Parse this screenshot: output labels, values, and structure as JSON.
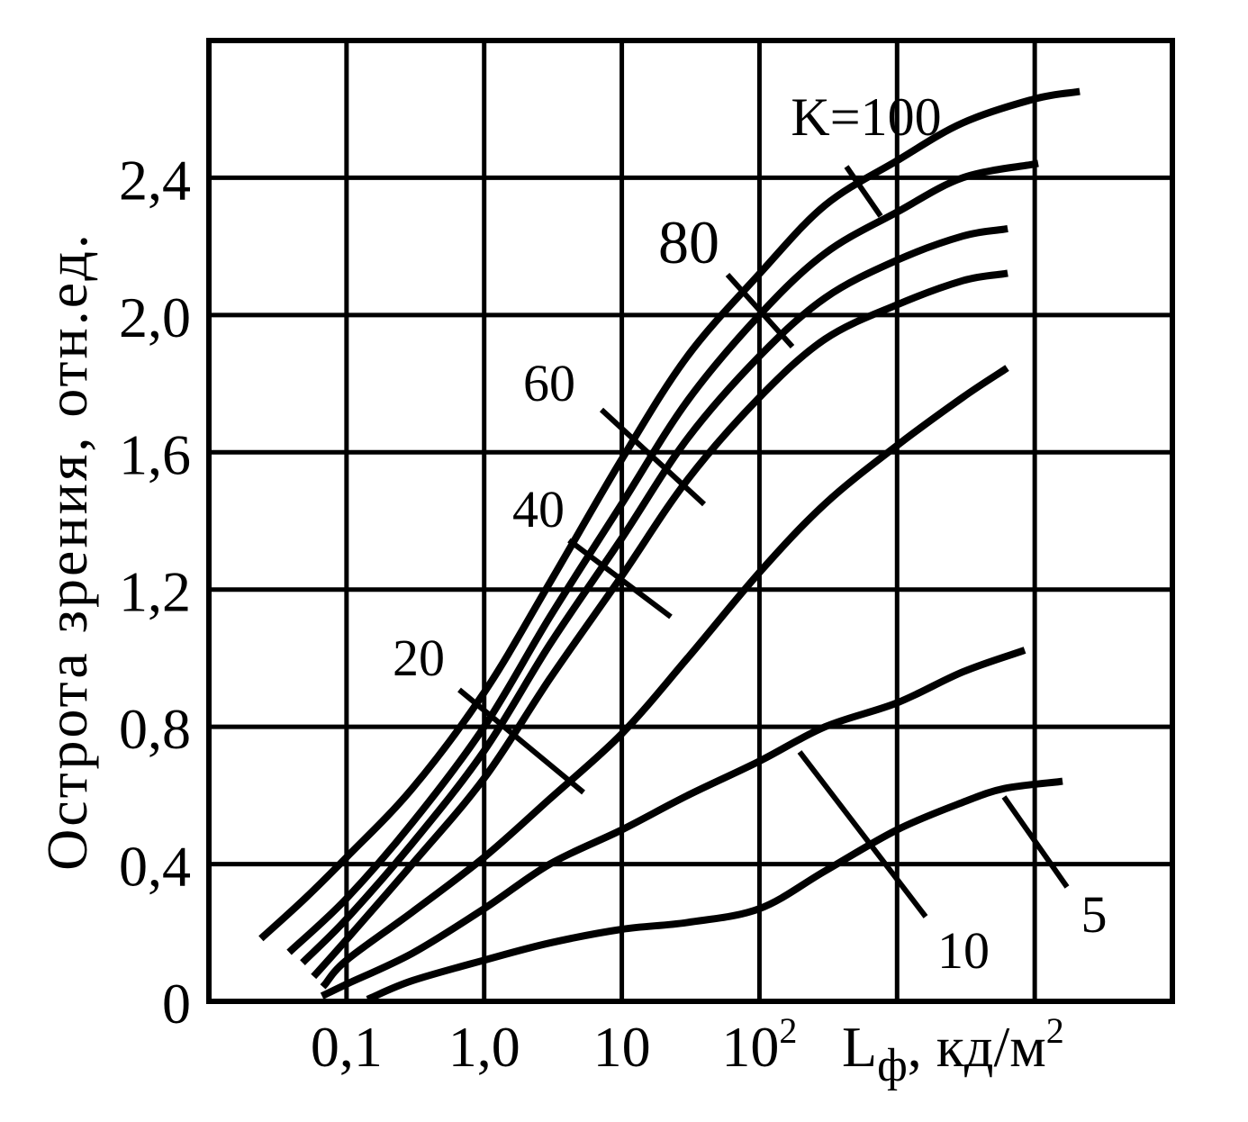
{
  "chart_data": {
    "type": "line",
    "ylabel": "Острота зрения, отн.ед.",
    "xlabel": {
      "main": "L",
      "sub": "ф",
      "rest": ", кд/м",
      "sup": "2"
    },
    "x_scale": "log",
    "xlim": [
      0.01,
      100000
    ],
    "ylim": [
      0,
      2.8
    ],
    "grid": true,
    "x_ticks": [
      {
        "value": 0.1,
        "label": "0,1",
        "sup": ""
      },
      {
        "value": 1,
        "label": "1,0",
        "sup": ""
      },
      {
        "value": 10,
        "label": "10",
        "sup": ""
      },
      {
        "value": 100,
        "label": "10",
        "sup": "2"
      }
    ],
    "y_ticks": [
      {
        "value": 0,
        "label": "0"
      },
      {
        "value": 0.4,
        "label": "0,4"
      },
      {
        "value": 0.8,
        "label": "0,8"
      },
      {
        "value": 1.2,
        "label": "1,2"
      },
      {
        "value": 1.6,
        "label": "1,6"
      },
      {
        "value": 2.0,
        "label": "2,0"
      },
      {
        "value": 2.4,
        "label": "2,4"
      }
    ],
    "series": [
      {
        "name": "K=100",
        "points": [
          [
            0.025,
            0.19
          ],
          [
            0.05,
            0.3
          ],
          [
            0.1,
            0.42
          ],
          [
            0.3,
            0.62
          ],
          [
            1,
            0.9
          ],
          [
            3,
            1.22
          ],
          [
            10,
            1.58
          ],
          [
            30,
            1.88
          ],
          [
            100,
            2.12
          ],
          [
            300,
            2.32
          ],
          [
            1000,
            2.45
          ],
          [
            3000,
            2.56
          ],
          [
            10000,
            2.63
          ],
          [
            20000,
            2.65
          ]
        ]
      },
      {
        "name": "80",
        "points": [
          [
            0.04,
            0.15
          ],
          [
            0.1,
            0.3
          ],
          [
            0.3,
            0.52
          ],
          [
            1,
            0.8
          ],
          [
            3,
            1.12
          ],
          [
            10,
            1.45
          ],
          [
            30,
            1.75
          ],
          [
            100,
            2.0
          ],
          [
            300,
            2.18
          ],
          [
            1000,
            2.3
          ],
          [
            3000,
            2.4
          ],
          [
            10000,
            2.44
          ]
        ]
      },
      {
        "name": "60",
        "points": [
          [
            0.05,
            0.12
          ],
          [
            0.1,
            0.24
          ],
          [
            0.3,
            0.46
          ],
          [
            1,
            0.73
          ],
          [
            3,
            1.04
          ],
          [
            10,
            1.35
          ],
          [
            30,
            1.64
          ],
          [
            100,
            1.88
          ],
          [
            300,
            2.05
          ],
          [
            1000,
            2.16
          ],
          [
            3000,
            2.23
          ],
          [
            6000,
            2.25
          ]
        ]
      },
      {
        "name": "40",
        "points": [
          [
            0.06,
            0.08
          ],
          [
            0.1,
            0.18
          ],
          [
            0.3,
            0.4
          ],
          [
            1,
            0.65
          ],
          [
            3,
            0.94
          ],
          [
            10,
            1.24
          ],
          [
            30,
            1.52
          ],
          [
            100,
            1.76
          ],
          [
            300,
            1.93
          ],
          [
            1000,
            2.03
          ],
          [
            3000,
            2.1
          ],
          [
            6000,
            2.12
          ]
        ]
      },
      {
        "name": "20",
        "points": [
          [
            0.07,
            0.05
          ],
          [
            0.1,
            0.12
          ],
          [
            0.3,
            0.26
          ],
          [
            1,
            0.42
          ],
          [
            3,
            0.59
          ],
          [
            10,
            0.78
          ],
          [
            30,
            1.0
          ],
          [
            100,
            1.25
          ],
          [
            300,
            1.45
          ],
          [
            1000,
            1.62
          ],
          [
            3000,
            1.76
          ],
          [
            6000,
            1.84
          ]
        ]
      },
      {
        "name": "10",
        "points": [
          [
            0.07,
            0.02
          ],
          [
            0.1,
            0.05
          ],
          [
            0.3,
            0.14
          ],
          [
            1,
            0.27
          ],
          [
            3,
            0.4
          ],
          [
            10,
            0.5
          ],
          [
            30,
            0.6
          ],
          [
            100,
            0.7
          ],
          [
            300,
            0.8
          ],
          [
            1000,
            0.87
          ],
          [
            3000,
            0.96
          ],
          [
            8000,
            1.02
          ]
        ]
      },
      {
        "name": "5",
        "points": [
          [
            0.15,
            0.01
          ],
          [
            0.3,
            0.06
          ],
          [
            1,
            0.12
          ],
          [
            3,
            0.17
          ],
          [
            10,
            0.21
          ],
          [
            30,
            0.23
          ],
          [
            100,
            0.27
          ],
          [
            300,
            0.38
          ],
          [
            1000,
            0.5
          ],
          [
            3000,
            0.58
          ],
          [
            6000,
            0.62
          ],
          [
            15000,
            0.64
          ]
        ]
      }
    ],
    "annotations": [
      {
        "text": "K=100",
        "series": "K=100",
        "at_x": 500
      },
      {
        "text": "80",
        "series": "80",
        "at_x": 120
      },
      {
        "text": "60",
        "series": "60",
        "at_x": 30
      },
      {
        "text": "40",
        "series": "40",
        "at_x": 12
      },
      {
        "text": "20",
        "series": "20",
        "at_x": 1
      },
      {
        "text": "10",
        "series": "10",
        "at_x": 120
      },
      {
        "text": "5",
        "series": "5",
        "at_x": 4000
      }
    ]
  }
}
